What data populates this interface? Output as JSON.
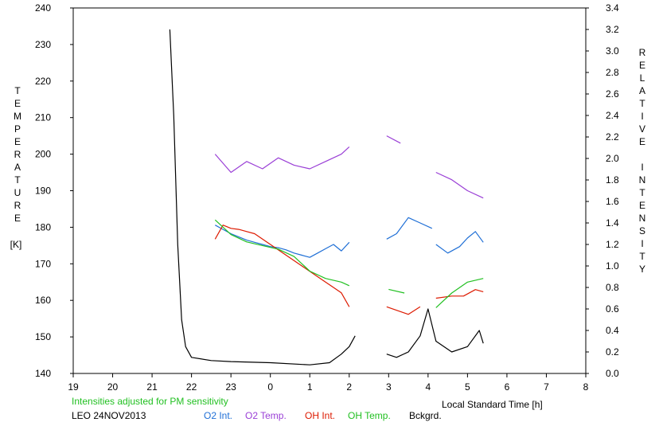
{
  "chart_data": {
    "type": "line",
    "left_axis": {
      "label": "TEMPERATURE",
      "unit": "[K]",
      "range": [
        140,
        240
      ],
      "ticks": [
        "140",
        "150",
        "160",
        "170",
        "180",
        "190",
        "200",
        "210",
        "220",
        "230",
        "240"
      ]
    },
    "right_axis": {
      "label": "RELATIVE INTENSITY",
      "range": [
        0.0,
        3.4
      ],
      "ticks": [
        "0.0",
        "0.2",
        "0.4",
        "0.6",
        "0.8",
        "1.0",
        "1.2",
        "1.4",
        "1.6",
        "1.8",
        "2.0",
        "2.2",
        "2.4",
        "2.6",
        "2.8",
        "3.0",
        "3.2",
        "3.4"
      ]
    },
    "x_axis": {
      "label": "Local Standard Time [h]",
      "range": [
        19,
        32
      ],
      "ticks": [
        "19",
        "20",
        "21",
        "22",
        "23",
        "0",
        "1",
        "2",
        "3",
        "4",
        "5",
        "6",
        "7",
        "8"
      ]
    },
    "grid": false,
    "notes": {
      "adjust_note": "Intensities adjusted for PM sensitivity",
      "station": "LEO 24NOV2013"
    },
    "series": [
      {
        "name": "O2 Int.",
        "color": "#1f6fd6",
        "axis": "right",
        "segments": [
          [
            [
              22.6,
              1.38
            ],
            [
              22.8,
              1.34
            ],
            [
              23.0,
              1.3
            ],
            [
              23.2,
              1.27
            ],
            [
              23.4,
              1.24
            ],
            [
              23.6,
              1.22
            ],
            [
              23.8,
              1.2
            ],
            [
              24.0,
              1.18
            ],
            [
              24.2,
              1.17
            ],
            [
              24.4,
              1.15
            ],
            [
              24.6,
              1.12
            ],
            [
              24.8,
              1.1
            ],
            [
              25.0,
              1.08
            ],
            [
              25.2,
              1.12
            ],
            [
              25.4,
              1.16
            ],
            [
              25.6,
              1.2
            ],
            [
              25.8,
              1.14
            ],
            [
              26.0,
              1.22
            ]
          ],
          [
            [
              26.95,
              1.25
            ],
            [
              27.2,
              1.3
            ],
            [
              27.5,
              1.45
            ],
            [
              27.8,
              1.4
            ],
            [
              28.1,
              1.35
            ]
          ],
          [
            [
              28.2,
              1.2
            ],
            [
              28.5,
              1.12
            ],
            [
              28.8,
              1.18
            ],
            [
              29.0,
              1.26
            ],
            [
              29.2,
              1.32
            ],
            [
              29.4,
              1.22
            ]
          ]
        ]
      },
      {
        "name": "O2 Temp.",
        "color": "#9a3fd6",
        "axis": "left",
        "segments": [
          [
            [
              22.6,
              200
            ],
            [
              23.0,
              195
            ],
            [
              23.4,
              198
            ],
            [
              23.8,
              196
            ],
            [
              24.2,
              199
            ],
            [
              24.6,
              197
            ],
            [
              25.0,
              196
            ],
            [
              25.4,
              198
            ],
            [
              25.8,
              200
            ],
            [
              26.0,
              202
            ]
          ],
          [
            [
              26.95,
              205
            ],
            [
              27.3,
              203
            ]
          ],
          [
            [
              28.2,
              195
            ],
            [
              28.6,
              193
            ],
            [
              29.0,
              190
            ],
            [
              29.4,
              188
            ]
          ]
        ]
      },
      {
        "name": "OH Int.",
        "color": "#dd1a00",
        "axis": "right",
        "segments": [
          [
            [
              22.6,
              1.25
            ],
            [
              22.8,
              1.38
            ],
            [
              23.0,
              1.35
            ],
            [
              23.2,
              1.34
            ],
            [
              23.4,
              1.32
            ],
            [
              23.6,
              1.3
            ],
            [
              23.8,
              1.25
            ],
            [
              24.0,
              1.2
            ],
            [
              24.2,
              1.15
            ],
            [
              24.4,
              1.1
            ],
            [
              24.6,
              1.05
            ],
            [
              24.8,
              1.0
            ],
            [
              25.0,
              0.95
            ],
            [
              25.2,
              0.9
            ],
            [
              25.4,
              0.85
            ],
            [
              25.6,
              0.8
            ],
            [
              25.8,
              0.75
            ],
            [
              26.0,
              0.62
            ]
          ],
          [
            [
              26.95,
              0.62
            ],
            [
              27.5,
              0.55
            ],
            [
              27.8,
              0.62
            ]
          ],
          [
            [
              28.2,
              0.7
            ],
            [
              28.6,
              0.72
            ],
            [
              28.9,
              0.72
            ],
            [
              29.2,
              0.78
            ],
            [
              29.4,
              0.76
            ]
          ]
        ]
      },
      {
        "name": "OH Temp.",
        "color": "#22c022",
        "axis": "left",
        "segments": [
          [
            [
              22.6,
              182
            ],
            [
              23.0,
              178
            ],
            [
              23.4,
              176
            ],
            [
              23.8,
              175
            ],
            [
              24.2,
              174
            ],
            [
              24.6,
              172
            ],
            [
              25.0,
              168
            ],
            [
              25.4,
              166
            ],
            [
              25.8,
              165
            ],
            [
              26.0,
              164
            ]
          ],
          [
            [
              27.0,
              163
            ],
            [
              27.4,
              162
            ]
          ],
          [
            [
              28.2,
              158
            ],
            [
              28.6,
              162
            ],
            [
              29.0,
              165
            ],
            [
              29.4,
              166
            ]
          ]
        ]
      },
      {
        "name": "Bckgrd.",
        "color": "#000000",
        "axis": "right",
        "segments": [
          [
            [
              21.45,
              3.2
            ],
            [
              21.55,
              2.4
            ],
            [
              21.65,
              1.2
            ],
            [
              21.75,
              0.5
            ],
            [
              21.85,
              0.25
            ],
            [
              22.0,
              0.15
            ],
            [
              22.5,
              0.12
            ],
            [
              23.0,
              0.11
            ],
            [
              24.0,
              0.1
            ],
            [
              25.0,
              0.08
            ],
            [
              25.5,
              0.1
            ],
            [
              25.8,
              0.18
            ],
            [
              26.0,
              0.25
            ],
            [
              26.15,
              0.35
            ]
          ],
          [
            [
              26.95,
              0.18
            ],
            [
              27.2,
              0.15
            ],
            [
              27.5,
              0.2
            ],
            [
              27.8,
              0.35
            ],
            [
              28.0,
              0.6
            ],
            [
              28.2,
              0.3
            ],
            [
              28.6,
              0.2
            ],
            [
              29.0,
              0.25
            ],
            [
              29.3,
              0.4
            ],
            [
              29.4,
              0.28
            ]
          ]
        ]
      }
    ]
  }
}
